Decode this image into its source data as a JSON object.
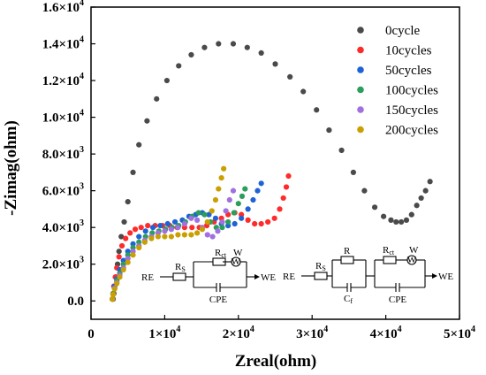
{
  "chart_data": {
    "type": "scatter",
    "xlabel": "Zreal(ohm)",
    "ylabel": "-Zimag(ohm)",
    "xlim": [
      0,
      50000
    ],
    "ylim": [
      -1000,
      16000
    ],
    "x_ticks": [
      {
        "value": 0,
        "base": "0",
        "exp": ""
      },
      {
        "value": 10000,
        "base": "1×10",
        "exp": "4"
      },
      {
        "value": 20000,
        "base": "2×10",
        "exp": "4"
      },
      {
        "value": 30000,
        "base": "3×10",
        "exp": "4"
      },
      {
        "value": 40000,
        "base": "4×10",
        "exp": "4"
      },
      {
        "value": 50000,
        "base": "5×10",
        "exp": "4"
      }
    ],
    "y_ticks": [
      {
        "value": 0,
        "base": "0.0",
        "exp": ""
      },
      {
        "value": 2000,
        "base": "2.0×10",
        "exp": "3"
      },
      {
        "value": 4000,
        "base": "4.0×10",
        "exp": "3"
      },
      {
        "value": 6000,
        "base": "6.0×10",
        "exp": "3"
      },
      {
        "value": 8000,
        "base": "8.0×10",
        "exp": "3"
      },
      {
        "value": 10000,
        "base": "1.0×10",
        "exp": "4"
      },
      {
        "value": 12000,
        "base": "1.2×10",
        "exp": "4"
      },
      {
        "value": 14000,
        "base": "1.4×10",
        "exp": "4"
      },
      {
        "value": 16000,
        "base": "1.6×10",
        "exp": "4"
      }
    ],
    "legend_position": "top-right",
    "series": [
      {
        "name": "0cycle",
        "color": "#4a4a4a",
        "points": [
          [
            3000,
            100
          ],
          [
            3100,
            400
          ],
          [
            3200,
            800
          ],
          [
            3400,
            1300
          ],
          [
            3600,
            2000
          ],
          [
            3800,
            2700
          ],
          [
            4100,
            3500
          ],
          [
            4500,
            4300
          ],
          [
            5000,
            5400
          ],
          [
            5700,
            7000
          ],
          [
            6500,
            8500
          ],
          [
            7600,
            9800
          ],
          [
            8900,
            11000
          ],
          [
            10300,
            12000
          ],
          [
            11900,
            12800
          ],
          [
            13600,
            13400
          ],
          [
            15400,
            13800
          ],
          [
            17300,
            14000
          ],
          [
            19300,
            14000
          ],
          [
            21200,
            13800
          ],
          [
            23100,
            13500
          ],
          [
            25000,
            12900
          ],
          [
            27000,
            12200
          ],
          [
            28800,
            11400
          ],
          [
            30600,
            10400
          ],
          [
            32300,
            9300
          ],
          [
            34000,
            8200
          ],
          [
            35600,
            7000
          ],
          [
            37100,
            6000
          ],
          [
            38500,
            5100
          ],
          [
            39700,
            4600
          ],
          [
            40700,
            4400
          ],
          [
            41400,
            4300
          ],
          [
            42100,
            4300
          ],
          [
            42800,
            4400
          ],
          [
            43500,
            4700
          ],
          [
            44200,
            5200
          ],
          [
            44800,
            5600
          ],
          [
            45400,
            6000
          ],
          [
            46000,
            6500
          ]
        ]
      },
      {
        "name": "10cycles",
        "color": "#ff2a2a",
        "points": [
          [
            2900,
            100
          ],
          [
            3000,
            400
          ],
          [
            3100,
            800
          ],
          [
            3300,
            1300
          ],
          [
            3500,
            1800
          ],
          [
            3800,
            2400
          ],
          [
            4200,
            3000
          ],
          [
            4700,
            3400
          ],
          [
            5300,
            3700
          ],
          [
            6000,
            3900
          ],
          [
            6800,
            4000
          ],
          [
            7700,
            4100
          ],
          [
            8700,
            4100
          ],
          [
            9700,
            4100
          ],
          [
            10700,
            4100
          ],
          [
            11700,
            4000
          ],
          [
            12700,
            4000
          ],
          [
            13700,
            4000
          ],
          [
            14700,
            4000
          ],
          [
            15700,
            4100
          ],
          [
            16700,
            4300
          ],
          [
            17700,
            4500
          ],
          [
            18600,
            4700
          ],
          [
            19500,
            4800
          ],
          [
            20400,
            4700
          ],
          [
            21300,
            4400
          ],
          [
            22200,
            4200
          ],
          [
            23100,
            4200
          ],
          [
            24000,
            4300
          ],
          [
            24900,
            4500
          ],
          [
            25600,
            5000
          ],
          [
            26100,
            5600
          ],
          [
            26500,
            6200
          ],
          [
            26800,
            6800
          ]
        ]
      },
      {
        "name": "50cycles",
        "color": "#1e63d6",
        "points": [
          [
            2900,
            100
          ],
          [
            3000,
            400
          ],
          [
            3200,
            800
          ],
          [
            3500,
            1200
          ],
          [
            3900,
            1700
          ],
          [
            4400,
            2200
          ],
          [
            5000,
            2700
          ],
          [
            5700,
            3100
          ],
          [
            6500,
            3500
          ],
          [
            7400,
            3800
          ],
          [
            8400,
            4000
          ],
          [
            9400,
            4100
          ],
          [
            10400,
            4200
          ],
          [
            11400,
            4300
          ],
          [
            12400,
            4400
          ],
          [
            13300,
            4600
          ],
          [
            14200,
            4700
          ],
          [
            15100,
            4800
          ],
          [
            16000,
            4700
          ],
          [
            16900,
            4500
          ],
          [
            17700,
            4200
          ],
          [
            18600,
            4100
          ],
          [
            19500,
            4200
          ],
          [
            20400,
            4500
          ],
          [
            21300,
            5000
          ],
          [
            22000,
            5500
          ],
          [
            22600,
            6000
          ],
          [
            23100,
            6400
          ]
        ]
      },
      {
        "name": "100cycles",
        "color": "#2a9e5a",
        "points": [
          [
            2900,
            100
          ],
          [
            3000,
            400
          ],
          [
            3200,
            700
          ],
          [
            3500,
            1100
          ],
          [
            3900,
            1500
          ],
          [
            4400,
            2000
          ],
          [
            5000,
            2500
          ],
          [
            5700,
            2900
          ],
          [
            6500,
            3200
          ],
          [
            7400,
            3500
          ],
          [
            8300,
            3700
          ],
          [
            9200,
            3800
          ],
          [
            10100,
            3900
          ],
          [
            11000,
            4000
          ],
          [
            11900,
            4100
          ],
          [
            12800,
            4300
          ],
          [
            13700,
            4600
          ],
          [
            14600,
            4800
          ],
          [
            15400,
            4700
          ],
          [
            16200,
            4300
          ],
          [
            17000,
            4000
          ],
          [
            17800,
            4000
          ],
          [
            18600,
            4300
          ],
          [
            19400,
            4800
          ],
          [
            20000,
            5300
          ],
          [
            20500,
            5700
          ],
          [
            20900,
            6100
          ]
        ]
      },
      {
        "name": "150cycles",
        "color": "#a070e0",
        "points": [
          [
            2900,
            100
          ],
          [
            3000,
            350
          ],
          [
            3200,
            700
          ],
          [
            3500,
            1000
          ],
          [
            3900,
            1400
          ],
          [
            4400,
            1800
          ],
          [
            5000,
            2300
          ],
          [
            5700,
            2700
          ],
          [
            6500,
            3000
          ],
          [
            7300,
            3300
          ],
          [
            8200,
            3500
          ],
          [
            9100,
            3700
          ],
          [
            10000,
            3800
          ],
          [
            10900,
            3900
          ],
          [
            11800,
            4000
          ],
          [
            12700,
            4200
          ],
          [
            13600,
            4500
          ],
          [
            14400,
            4400
          ],
          [
            15100,
            4000
          ],
          [
            15800,
            3600
          ],
          [
            16500,
            3500
          ],
          [
            17200,
            3800
          ],
          [
            17800,
            4300
          ],
          [
            18300,
            4900
          ],
          [
            18800,
            5500
          ],
          [
            19300,
            6000
          ]
        ]
      },
      {
        "name": "200cycles",
        "color": "#c9a000",
        "points": [
          [
            2900,
            100
          ],
          [
            3000,
            350
          ],
          [
            3200,
            650
          ],
          [
            3500,
            950
          ],
          [
            3900,
            1300
          ],
          [
            4400,
            1700
          ],
          [
            5000,
            2100
          ],
          [
            5700,
            2500
          ],
          [
            6500,
            2900
          ],
          [
            7300,
            3200
          ],
          [
            8200,
            3400
          ],
          [
            9100,
            3500
          ],
          [
            10000,
            3500
          ],
          [
            10900,
            3500
          ],
          [
            11800,
            3600
          ],
          [
            12700,
            3600
          ],
          [
            13600,
            3600
          ],
          [
            14400,
            3700
          ],
          [
            15100,
            3900
          ],
          [
            15800,
            4300
          ],
          [
            16400,
            4900
          ],
          [
            16900,
            5500
          ],
          [
            17300,
            6100
          ],
          [
            17700,
            6700
          ],
          [
            18000,
            7200
          ]
        ]
      }
    ]
  },
  "circuit_left": {
    "re": "RE",
    "we": "WE",
    "rs": "R",
    "rs_sub": "S",
    "rct": "R",
    "rct_sub": "ct",
    "w": "W",
    "w_label": "W",
    "cpe": "CPE"
  },
  "circuit_right": {
    "re": "RE",
    "we": "WE",
    "rs": "R",
    "rs_sub": "S",
    "r": "R",
    "cf": "C",
    "cf_sub": "f",
    "rct": "R",
    "rct_sub": "ct",
    "w": "W",
    "w_label": "W",
    "cpe": "CPE"
  }
}
